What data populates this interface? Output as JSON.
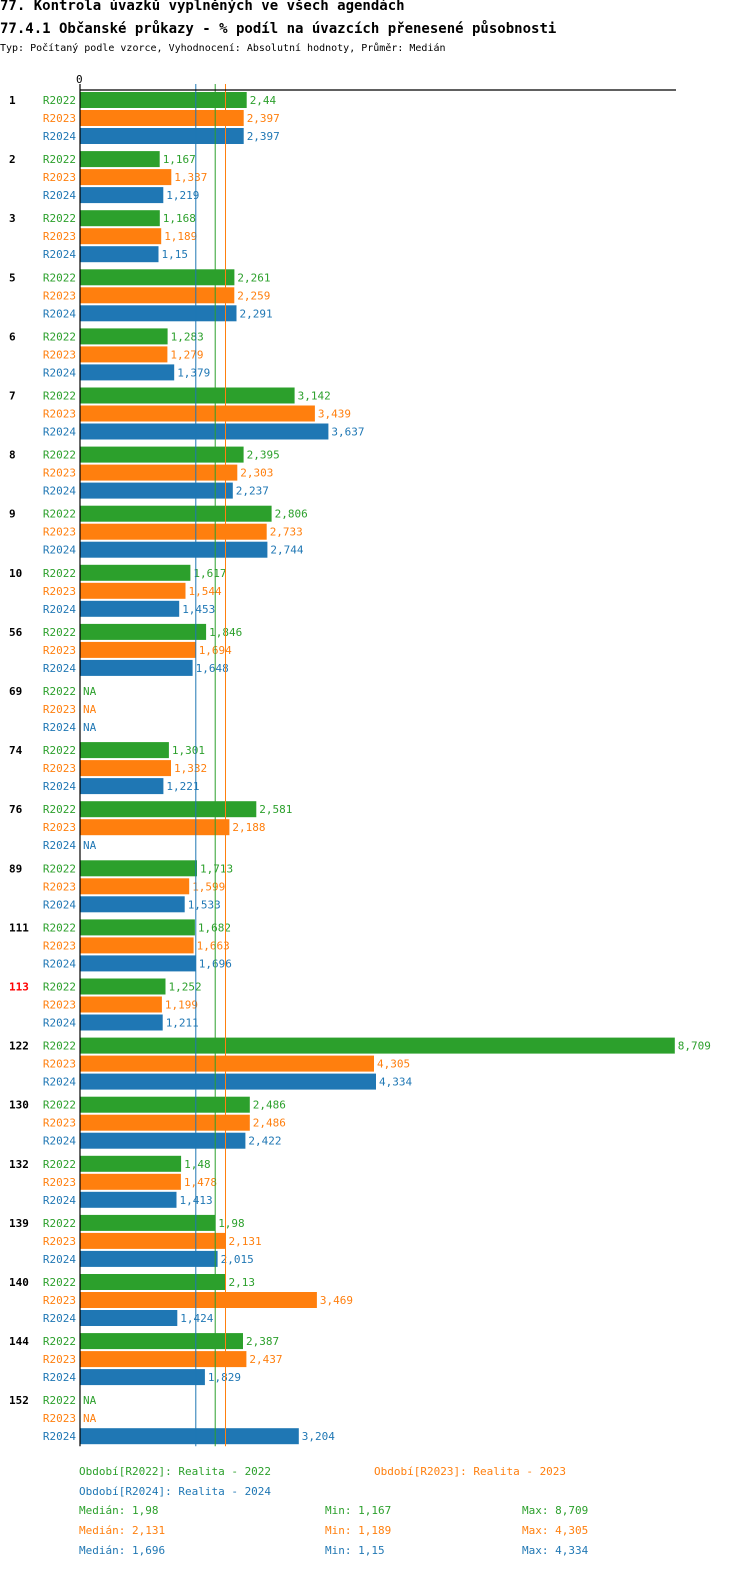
{
  "header": {
    "title": "77. Kontrola úvazků vyplněných ve všech agendách",
    "subtitle": "77.4.1 Občanské průkazy - % podíl na úvazcích přenesené působnosti",
    "meta": "Typ: Počítaný podle vzorce, Vyhodnocení: Absolutní hodnoty, Průměr: Medián"
  },
  "chart_data": {
    "type": "bar",
    "orientation": "horizontal",
    "axis_zero_label": "0",
    "xlim": [
      0,
      8.709
    ],
    "na_label": "NA",
    "highlight_color": "#ff0000",
    "categories": [
      {
        "label": "1",
        "highlight": false
      },
      {
        "label": "2",
        "highlight": false
      },
      {
        "label": "3",
        "highlight": false
      },
      {
        "label": "5",
        "highlight": false
      },
      {
        "label": "6",
        "highlight": false
      },
      {
        "label": "7",
        "highlight": false
      },
      {
        "label": "8",
        "highlight": false
      },
      {
        "label": "9",
        "highlight": false
      },
      {
        "label": "10",
        "highlight": false
      },
      {
        "label": "56",
        "highlight": false
      },
      {
        "label": "69",
        "highlight": false
      },
      {
        "label": "74",
        "highlight": false
      },
      {
        "label": "76",
        "highlight": false
      },
      {
        "label": "89",
        "highlight": false
      },
      {
        "label": "111",
        "highlight": false
      },
      {
        "label": "113",
        "highlight": true
      },
      {
        "label": "122",
        "highlight": false
      },
      {
        "label": "130",
        "highlight": false
      },
      {
        "label": "132",
        "highlight": false
      },
      {
        "label": "139",
        "highlight": false
      },
      {
        "label": "140",
        "highlight": false
      },
      {
        "label": "144",
        "highlight": false
      },
      {
        "label": "152",
        "highlight": false
      }
    ],
    "series": [
      {
        "name": "R2022",
        "color": "#2ca02c",
        "values": [
          2.44,
          1.167,
          1.168,
          2.261,
          1.283,
          3.142,
          2.395,
          2.806,
          1.617,
          1.846,
          null,
          1.301,
          2.581,
          1.713,
          1.682,
          1.252,
          8.709,
          2.486,
          1.48,
          1.98,
          2.13,
          2.387,
          null
        ],
        "labels": [
          "2,44",
          "1,167",
          "1,168",
          "2,261",
          "1,283",
          "3,142",
          "2,395",
          "2,806",
          "1,617",
          "1,846",
          "NA",
          "1,301",
          "2,581",
          "1,713",
          "1,682",
          "1,252",
          "8,709",
          "2,486",
          "1,48",
          "1,98",
          "2,13",
          "2,387",
          "NA"
        ]
      },
      {
        "name": "R2023",
        "color": "#ff7f0e",
        "values": [
          2.397,
          1.337,
          1.189,
          2.259,
          1.279,
          3.439,
          2.303,
          2.733,
          1.544,
          1.694,
          null,
          1.332,
          2.188,
          1.599,
          1.663,
          1.199,
          4.305,
          2.486,
          1.478,
          2.131,
          3.469,
          2.437,
          null
        ],
        "labels": [
          "2,397",
          "1,337",
          "1,189",
          "2,259",
          "1,279",
          "3,439",
          "2,303",
          "2,733",
          "1,544",
          "1,694",
          "NA",
          "1,332",
          "2,188",
          "1,599",
          "1,663",
          "1,199",
          "4,305",
          "2,486",
          "1,478",
          "2,131",
          "3,469",
          "2,437",
          "NA"
        ]
      },
      {
        "name": "R2024",
        "color": "#1f77b4",
        "values": [
          2.397,
          1.219,
          1.15,
          2.291,
          1.379,
          3.637,
          2.237,
          2.744,
          1.453,
          1.648,
          null,
          1.221,
          null,
          1.533,
          1.696,
          1.211,
          4.334,
          2.422,
          1.413,
          2.015,
          1.424,
          1.829,
          3.204
        ],
        "labels": [
          "2,397",
          "1,219",
          "1,15",
          "2,291",
          "1,379",
          "3,637",
          "2,237",
          "2,744",
          "1,453",
          "1,648",
          "NA",
          "1,221",
          "NA",
          "1,533",
          "1,696",
          "1,211",
          "4,334",
          "2,422",
          "1,413",
          "2,015",
          "1,424",
          "1,829",
          "3,204"
        ]
      }
    ],
    "reference_lines": [
      {
        "series": "R2024",
        "value": 1.696,
        "color": "#1f77b4"
      },
      {
        "series": "R2022",
        "value": 1.98,
        "color": "#2ca02c"
      },
      {
        "series": "R2023",
        "value": 2.131,
        "color": "#ff7f0e"
      }
    ]
  },
  "legend": {
    "periods": {
      "r2022": "Období[R2022]: Realita - 2022",
      "r2023": "Období[R2023]: Realita - 2023",
      "r2024": "Období[R2024]: Realita - 2024"
    },
    "stats": {
      "r2022": {
        "median": "Medián: 1,98",
        "min": "Min: 1,167",
        "max": "Max: 8,709"
      },
      "r2023": {
        "median": "Medián: 2,131",
        "min": "Min: 1,189",
        "max": "Max: 4,305"
      },
      "r2024": {
        "median": "Medián: 1,696",
        "min": "Min: 1,15",
        "max": "Max: 4,334"
      }
    },
    "colors": {
      "r2022": "#2ca02c",
      "r2023": "#ff7f0e",
      "r2024": "#1f77b4"
    }
  }
}
